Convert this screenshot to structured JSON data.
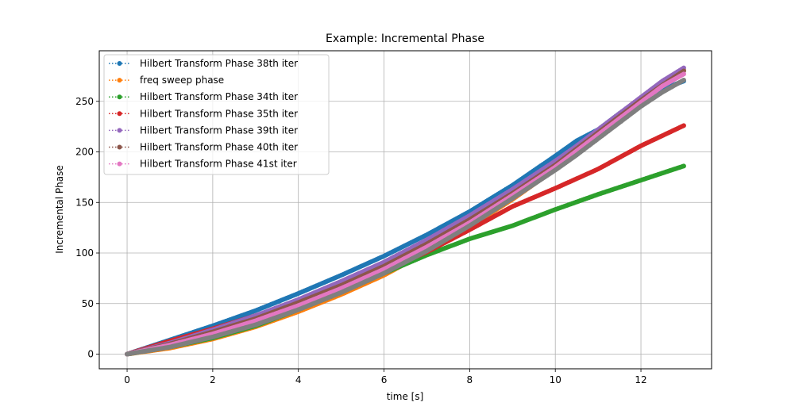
{
  "chart_data": {
    "type": "line",
    "title": "Example: Incremental Phase",
    "xlabel": "time [s]",
    "ylabel": "Incremental Phase",
    "xlim": [
      -0.65,
      13.65
    ],
    "ylim": [
      -14.5,
      300
    ],
    "xticks": [
      0,
      2,
      4,
      6,
      8,
      10,
      12
    ],
    "yticks": [
      0,
      50,
      100,
      150,
      200,
      250
    ],
    "grid": true,
    "legend_position": "upper-left",
    "series": [
      {
        "name": "Hilbert Transform Phase 38th iter",
        "color": "#1f77b4",
        "x": [
          0,
          1,
          2,
          3,
          4,
          5,
          6,
          7,
          8,
          9,
          10,
          10.5,
          11,
          11.5,
          12,
          12.5,
          13
        ],
        "y": [
          0,
          14,
          28,
          43,
          60,
          78,
          97,
          118,
          141,
          167,
          196,
          211,
          222,
          238,
          252,
          262,
          270
        ]
      },
      {
        "name": "freq sweep phase",
        "color": "#ff7f0e",
        "x": [
          0,
          1,
          2,
          3,
          4,
          5,
          6,
          7,
          8,
          9,
          10,
          10.5,
          11,
          11.5,
          12,
          12.5,
          13
        ],
        "y": [
          0,
          6,
          15,
          27,
          42,
          59,
          78,
          101,
          126,
          153,
          183,
          199,
          216,
          233,
          250,
          266,
          281
        ]
      },
      {
        "name": "Hilbert Transform Phase 34th iter",
        "color": "#2ca02c",
        "x": [
          0,
          1,
          2,
          3,
          4,
          5,
          6,
          7,
          8,
          9,
          10,
          11,
          12,
          13
        ],
        "y": [
          0,
          7,
          16,
          28,
          44,
          61,
          80,
          98,
          114,
          127,
          143,
          158,
          172,
          186
        ]
      },
      {
        "name": "Hilbert Transform Phase 35th iter",
        "color": "#d62728",
        "x": [
          0,
          1,
          2,
          3,
          4,
          5,
          6,
          7,
          8,
          9,
          10,
          11,
          12,
          13
        ],
        "y": [
          0,
          13,
          25,
          38,
          52,
          67,
          83,
          101,
          123,
          146,
          164,
          183,
          206,
          226
        ]
      },
      {
        "name": "Hilbert Transform Phase 39th iter",
        "color": "#9467bd",
        "x": [
          0,
          1,
          2,
          3,
          4,
          5,
          6,
          7,
          8,
          9,
          10,
          10.5,
          11,
          11.5,
          12,
          12.5,
          13
        ],
        "y": [
          0,
          11,
          24,
          38,
          54,
          72,
          91,
          113,
          137,
          163,
          191,
          206,
          222,
          238,
          254,
          270,
          283
        ]
      },
      {
        "name": "Hilbert Transform Phase 40th iter",
        "color": "#8c564b",
        "x": [
          0,
          1,
          2,
          3,
          4,
          5,
          6,
          7,
          8,
          9,
          10,
          10.5,
          11,
          11.5,
          12,
          12.5,
          13
        ],
        "y": [
          0,
          10,
          22,
          35,
          51,
          68,
          87,
          109,
          133,
          159,
          187,
          203,
          219,
          235,
          251,
          266,
          280
        ]
      },
      {
        "name": "Hilbert Transform Phase 41st iter",
        "color": "#e377c2",
        "x": [
          0,
          1,
          2,
          3,
          4,
          5,
          6,
          7,
          8,
          9,
          10,
          10.5,
          11,
          11.5,
          12,
          12.5,
          13
        ],
        "y": [
          0,
          9,
          20,
          33,
          48,
          65,
          84,
          106,
          130,
          157,
          185,
          201,
          217,
          233,
          249,
          265,
          277
        ]
      },
      {
        "color": "#7f7f7f",
        "x": [
          0,
          1,
          2,
          3,
          4,
          5,
          6,
          7,
          8,
          9,
          10,
          10.5,
          11,
          11.5,
          12,
          12.5,
          13
        ],
        "y": [
          0,
          7,
          17,
          29,
          44,
          61,
          80,
          102,
          127,
          154,
          182,
          197,
          213,
          229,
          245,
          259,
          271
        ]
      }
    ]
  }
}
